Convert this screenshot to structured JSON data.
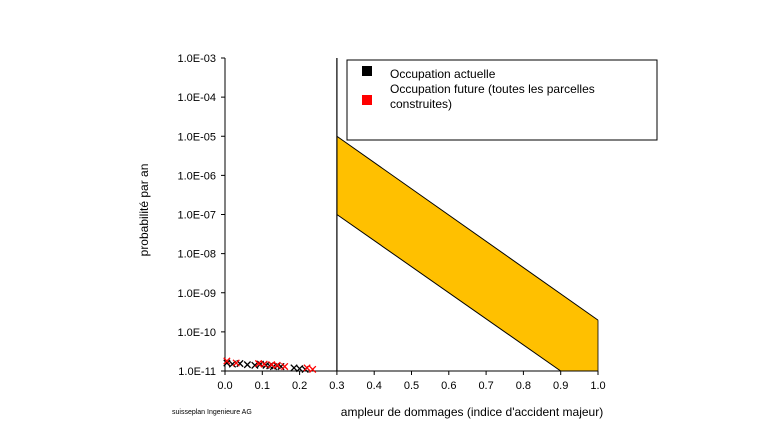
{
  "chart_data": {
    "type": "scatter",
    "title": "",
    "xlabel": "ampleur de dommages (indice d'accident majeur)",
    "ylabel": "probabilité par an",
    "xlim": [
      0.0,
      1.0
    ],
    "ylim_exp": [
      -11,
      -3
    ],
    "y_scale": "log",
    "x_ticks": [
      "0.0",
      "0.1",
      "0.2",
      "0.3",
      "0.4",
      "0.5",
      "0.6",
      "0.7",
      "0.8",
      "0.9",
      "1.0"
    ],
    "y_ticks": [
      "1.0E-03",
      "1.0E-04",
      "1.0E-05",
      "1.0E-06",
      "1.0E-07",
      "1.0E-08",
      "1.0E-09",
      "1.0E-10",
      "1.0E-11"
    ],
    "vertical_line_x": 0.3,
    "band": {
      "name": "acceptability band",
      "color": "#FFC000",
      "upper": [
        [
          0.3,
          1e-05
        ],
        [
          1.0,
          2e-10
        ]
      ],
      "lower": [
        [
          0.3,
          1e-07
        ],
        [
          0.9,
          1e-11
        ]
      ]
    },
    "series": [
      {
        "name": "Occupation actuelle",
        "color": "#000000",
        "marker": "x",
        "points": [
          [
            0.005,
            1.6e-11
          ],
          [
            0.02,
            1.5e-11
          ],
          [
            0.04,
            1.55e-11
          ],
          [
            0.06,
            1.45e-11
          ],
          [
            0.08,
            1.4e-11
          ],
          [
            0.095,
            1.5e-11
          ],
          [
            0.11,
            1.4e-11
          ],
          [
            0.12,
            1.35e-11
          ],
          [
            0.13,
            1.3e-11
          ],
          [
            0.14,
            1.35e-11
          ],
          [
            0.15,
            1.3e-11
          ],
          [
            0.185,
            1.2e-11
          ],
          [
            0.2,
            1.15e-11
          ],
          [
            0.215,
            1.1e-11
          ]
        ]
      },
      {
        "name": "Occupation future (toutes les parcelles construites)",
        "color": "#FF0000",
        "marker": "x",
        "points": [
          [
            0.005,
            1.8e-11
          ],
          [
            0.03,
            1.6e-11
          ],
          [
            0.09,
            1.55e-11
          ],
          [
            0.105,
            1.5e-11
          ],
          [
            0.125,
            1.45e-11
          ],
          [
            0.14,
            1.4e-11
          ],
          [
            0.16,
            1.3e-11
          ],
          [
            0.22,
            1.2e-11
          ],
          [
            0.235,
            1.1e-11
          ]
        ]
      }
    ],
    "legend": [
      {
        "label": "Occupation actuelle",
        "color": "#000000"
      },
      {
        "label": "Occupation future (toutes les parcelles construites)",
        "color": "#FF0000"
      }
    ],
    "legend_position": "top-right",
    "legend_lines": [
      "Occupation actuelle",
      "Occupation future (toutes les parcelles",
      "construites)"
    ]
  },
  "footer": {
    "credit": "suisseplan Ingenieure AG"
  }
}
